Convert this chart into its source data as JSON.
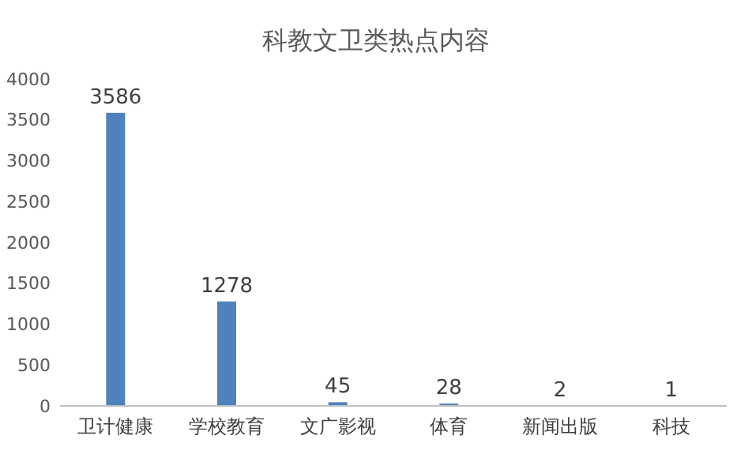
{
  "chart_data": {
    "type": "bar",
    "title": "科教文卫类热点内容",
    "categories": [
      "卫计健康",
      "学校教育",
      "文广影视",
      "体育",
      "新闻出版",
      "科技"
    ],
    "values": [
      3586,
      1278,
      45,
      28,
      2,
      1
    ],
    "color": "#4f81bd",
    "ylim": [
      0,
      4000
    ],
    "yticks": [
      0,
      500,
      1000,
      1500,
      2000,
      2500,
      3000,
      3500,
      4000
    ],
    "data_labels": true,
    "grid": false
  }
}
